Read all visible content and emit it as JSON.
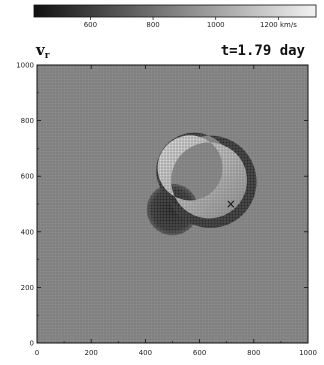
{
  "colorbar": {
    "tick_labels": [
      "600",
      "800",
      "1000",
      "1200 km/s"
    ],
    "tick_values": [
      600,
      800,
      1000,
      1200
    ],
    "range": [
      420,
      1320
    ],
    "colors": {
      "low": "#111111",
      "high": "#f2f2f2"
    }
  },
  "header": {
    "variable": "v",
    "subscript": "r",
    "time_label": "t=1.79 day"
  },
  "axes": {
    "x_ticks": [
      "0",
      "200",
      "400",
      "600",
      "800",
      "1000"
    ],
    "y_ticks": [
      "0",
      "200",
      "400",
      "600",
      "800",
      "1000"
    ],
    "x_range": [
      0,
      1000
    ],
    "y_range": [
      0,
      1000
    ]
  },
  "features": {
    "background_color": "#8c8c8c",
    "grid": true,
    "dark_blob": {
      "center": [
        500,
        480
      ],
      "radius": 95,
      "color": "#2a2a2a"
    },
    "crescent": {
      "outer_center": [
        640,
        580
      ],
      "outer_radius": 170,
      "inner_center": [
        580,
        620
      ],
      "inner_radius": 140,
      "edge_color": "#2c2c2c",
      "fill_color": "#bdbdbd"
    },
    "marker": {
      "symbol": "×",
      "position": [
        715,
        500
      ]
    }
  }
}
